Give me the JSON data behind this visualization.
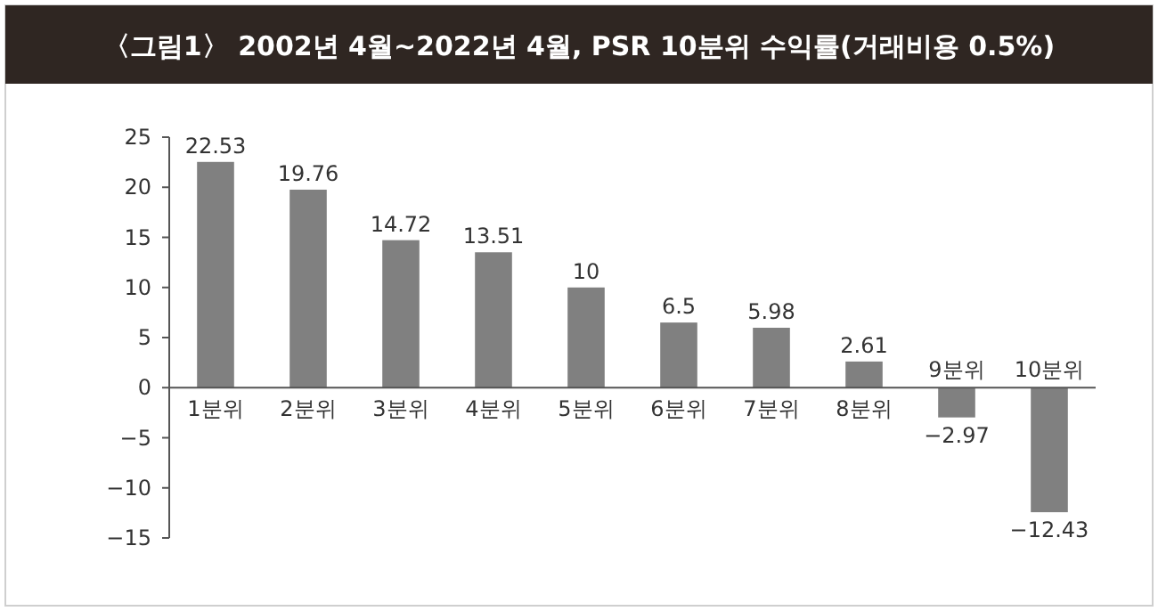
{
  "chart_data": {
    "type": "bar",
    "title": "〈그림1〉 2002년 4월~2022년 4월, PSR 10분위 수익률(거래비용 0.5%)",
    "categories": [
      "1분위",
      "2분위",
      "3분위",
      "4분위",
      "5분위",
      "6분위",
      "7분위",
      "8분위",
      "9분위",
      "10분위"
    ],
    "values": [
      22.53,
      19.76,
      14.72,
      13.51,
      10,
      6.5,
      5.98,
      2.61,
      -2.97,
      -12.43
    ],
    "color": "#808080",
    "ylim": [
      -15,
      25
    ],
    "yticks": [
      -15,
      -10,
      -5,
      0,
      5,
      10,
      15,
      20,
      25
    ],
    "data_labels": true,
    "grid": false
  }
}
